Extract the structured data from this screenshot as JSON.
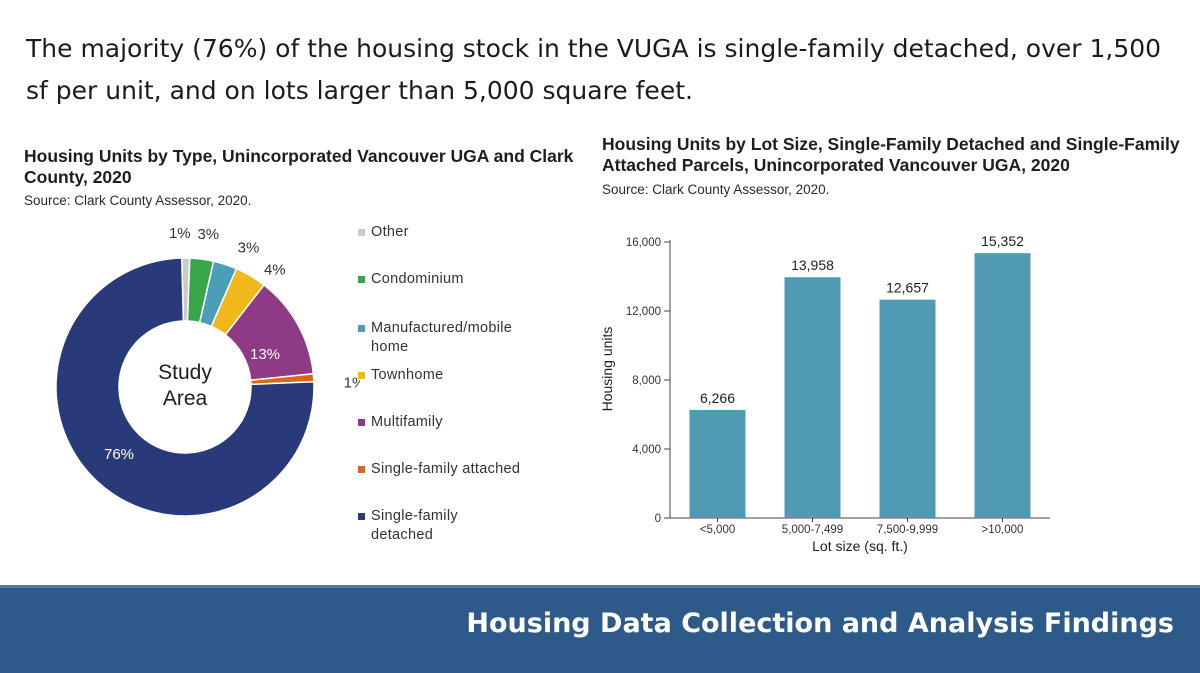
{
  "headline": "The majority (76%) of the housing stock in the VUGA is single-family detached, over 1,500 sf per unit, and on lots larger than 5,000 square feet.",
  "footer": {
    "title": "Housing Data Collection and Analysis Findings"
  },
  "colors": {
    "other": "#c8cbc9",
    "condominium": "#3aa64a",
    "manufactured": "#4a9fb6",
    "townhome": "#f0b81a",
    "multifamily": "#8e3a84",
    "sf_attached": "#d2691e",
    "sf_detached": "#283a7a",
    "bar": "#4e9bb3",
    "footer": "#2d5a88"
  },
  "chart_data": [
    {
      "type": "pie",
      "title": "Housing Units by Type, Unincorporated Vancouver UGA and Clark County, 2020",
      "source": "Source: Clark County Assessor, 2020.",
      "center_label": [
        "Study",
        "Area"
      ],
      "slices": [
        {
          "key": "other",
          "label": "Other",
          "value": 1,
          "display": "1%"
        },
        {
          "key": "condominium",
          "label": "Condominium",
          "value": 3,
          "display": "3%"
        },
        {
          "key": "manufactured",
          "label": "Manufactured/mobile home",
          "value": 3,
          "display": "3%"
        },
        {
          "key": "townhome",
          "label": "Townhome",
          "value": 4,
          "display": "4%"
        },
        {
          "key": "multifamily",
          "label": "Multifamily",
          "value": 13,
          "display": "13%"
        },
        {
          "key": "sf_attached",
          "label": "Single-family attached",
          "value": 1,
          "display": "1%"
        },
        {
          "key": "sf_detached",
          "label": "Single-family detached",
          "value": 76,
          "display": "76%"
        }
      ],
      "legend": [
        "Other",
        "Condominium",
        "Manufactured/mobile home",
        "Townhome",
        "Multifamily",
        "Single-family attached",
        "Single-family detached"
      ]
    },
    {
      "type": "bar",
      "title": "Housing Units by Lot Size, Single-Family Detached and Single-Family Attached Parcels, Unincorporated Vancouver UGA, 2020",
      "source": "Source: Clark County Assessor, 2020.",
      "categories": [
        "<5,000",
        "5,000-7,499",
        "7,500-9,999",
        ">10,000"
      ],
      "values": [
        6266,
        13958,
        12657,
        15352
      ],
      "value_labels": [
        "6,266",
        "13,958",
        "12,657",
        "15,352"
      ],
      "xlabel": "Lot size (sq. ft.)",
      "ylabel": "Housing units",
      "ylim": [
        0,
        16000
      ],
      "yticks": [
        0,
        4000,
        8000,
        12000,
        16000
      ],
      "ytick_labels": [
        "0",
        "4,000",
        "8,000",
        "12,000",
        "16,000"
      ]
    }
  ]
}
